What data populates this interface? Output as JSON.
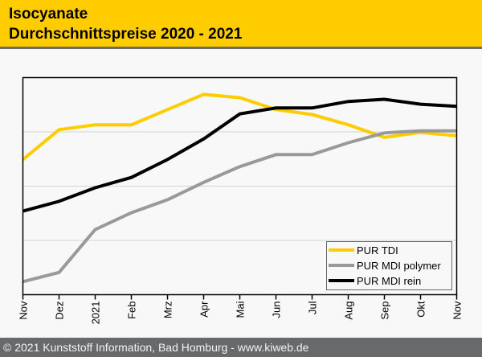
{
  "header": {
    "title_line1": "Isocyanate",
    "title_line2": "Durchschnittspreise 2020 - 2021"
  },
  "footer": {
    "copyright": "© 2021 Kunststoff Information, Bad Homburg - www.kiweb.de"
  },
  "colors": {
    "header_bg": "#ffcc00",
    "footer_bg": "#68696b",
    "pur_tdi": "#ffcc00",
    "pur_mdi_polymer": "#999999",
    "pur_mdi_rein": "#000000"
  },
  "chart_data": {
    "type": "line",
    "title": "Isocyanate Durchschnittspreise 2020 - 2021",
    "xlabel": "",
    "ylabel": "",
    "y_tick_labels_shown": false,
    "ylim": [
      0,
      4
    ],
    "y_gridlines": [
      1,
      2,
      3
    ],
    "grid": true,
    "legend_position": "bottom-right",
    "categories": [
      "Nov",
      "Dez",
      "2021",
      "Feb",
      "Mrz",
      "Apr",
      "Mai",
      "Jun",
      "Jul",
      "Aug",
      "Sep",
      "Okt",
      "Nov"
    ],
    "series": [
      {
        "name": "PUR TDI",
        "color": "#ffcc00",
        "values": [
          2.49,
          3.04,
          3.13,
          3.13,
          3.41,
          3.69,
          3.63,
          3.41,
          3.32,
          3.13,
          2.9,
          2.99,
          2.93
        ]
      },
      {
        "name": "PUR MDI polymer",
        "color": "#999999",
        "values": [
          0.24,
          0.41,
          1.2,
          1.51,
          1.75,
          2.07,
          2.36,
          2.58,
          2.58,
          2.8,
          2.98,
          3.02,
          3.02
        ]
      },
      {
        "name": "PUR MDI rein",
        "color": "#000000",
        "values": [
          1.54,
          1.72,
          1.97,
          2.16,
          2.49,
          2.87,
          3.33,
          3.44,
          3.44,
          3.56,
          3.6,
          3.51,
          3.47
        ]
      }
    ]
  }
}
